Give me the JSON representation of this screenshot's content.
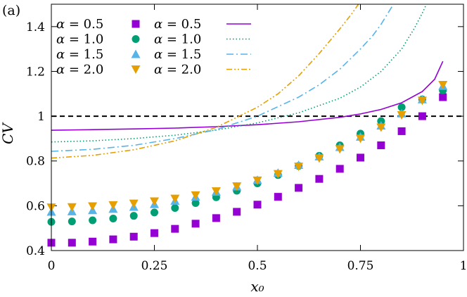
{
  "chart_data": {
    "type": "scatter",
    "panel_label": "(a)",
    "xlabel": "x₀",
    "ylabel": "CV",
    "xlim": [
      0,
      1
    ],
    "ylim": [
      0.4,
      1.5
    ],
    "xticks": [
      0,
      0.25,
      0.5,
      0.75,
      1
    ],
    "xtick_labels": [
      "0",
      "0.25",
      "0.5",
      "0.75",
      "1"
    ],
    "yticks": [
      0.4,
      0.6,
      0.8,
      1.0,
      1.2,
      1.4
    ],
    "ytick_labels": [
      "0.4",
      "0.6",
      "0.8",
      "1",
      "1.2",
      "1.4"
    ],
    "reference_line": {
      "y": 1.0,
      "style": "dashed",
      "color": "#000000"
    },
    "legend_placement": "top-left",
    "points_series": [
      {
        "name": "α = 0.5",
        "alpha": "0.5",
        "marker": "square",
        "color": "#9400D3",
        "x": [
          0,
          0.05,
          0.1,
          0.15,
          0.2,
          0.25,
          0.3,
          0.35,
          0.4,
          0.45,
          0.5,
          0.55,
          0.6,
          0.65,
          0.7,
          0.75,
          0.8,
          0.85,
          0.9,
          0.95
        ],
        "y": [
          0.435,
          0.435,
          0.44,
          0.45,
          0.462,
          0.478,
          0.497,
          0.52,
          0.545,
          0.573,
          0.605,
          0.64,
          0.68,
          0.72,
          0.765,
          0.815,
          0.87,
          0.933,
          1.0,
          1.085
        ]
      },
      {
        "name": "α = 1.0",
        "alpha": "1.0",
        "marker": "circle",
        "color": "#009E73",
        "x": [
          0,
          0.05,
          0.1,
          0.15,
          0.2,
          0.25,
          0.3,
          0.35,
          0.4,
          0.45,
          0.5,
          0.55,
          0.6,
          0.65,
          0.7,
          0.75,
          0.8,
          0.85,
          0.9,
          0.95
        ],
        "y": [
          0.528,
          0.53,
          0.535,
          0.543,
          0.555,
          0.57,
          0.59,
          0.612,
          0.638,
          0.667,
          0.7,
          0.737,
          0.778,
          0.823,
          0.87,
          0.922,
          0.978,
          1.04,
          1.075,
          1.115
        ]
      },
      {
        "name": "α = 1.5",
        "alpha": "1.5",
        "marker": "triangle-up",
        "color": "#56B4E9",
        "x": [
          0,
          0.05,
          0.1,
          0.15,
          0.2,
          0.25,
          0.3,
          0.35,
          0.4,
          0.45,
          0.5,
          0.55,
          0.6,
          0.65,
          0.7,
          0.75,
          0.8,
          0.85,
          0.9,
          0.95
        ],
        "y": [
          0.573,
          0.575,
          0.58,
          0.586,
          0.595,
          0.607,
          0.622,
          0.64,
          0.662,
          0.686,
          0.715,
          0.747,
          0.782,
          0.82,
          0.862,
          0.908,
          0.958,
          1.012,
          1.075,
          1.135
        ]
      },
      {
        "name": "α = 2.0",
        "alpha": "2.0",
        "marker": "triangle-down",
        "color": "#E69F00",
        "x": [
          0,
          0.05,
          0.1,
          0.15,
          0.2,
          0.25,
          0.3,
          0.35,
          0.4,
          0.45,
          0.5,
          0.55,
          0.6,
          0.65,
          0.7,
          0.75,
          0.8,
          0.85,
          0.9,
          0.95
        ],
        "y": [
          0.593,
          0.594,
          0.598,
          0.603,
          0.61,
          0.62,
          0.632,
          0.647,
          0.665,
          0.687,
          0.713,
          0.742,
          0.775,
          0.812,
          0.853,
          0.9,
          0.95,
          1.005,
          1.07,
          1.14
        ]
      }
    ],
    "line_series": [
      {
        "name": "α = 0.5",
        "alpha": "0.5",
        "dash": "solid",
        "color": "#9400D3",
        "x": [
          0,
          0.1,
          0.2,
          0.3,
          0.4,
          0.5,
          0.6,
          0.7,
          0.75,
          0.8,
          0.85,
          0.9,
          0.93,
          0.95
        ],
        "y": [
          0.937,
          0.94,
          0.943,
          0.947,
          0.953,
          0.962,
          0.975,
          0.995,
          1.01,
          1.03,
          1.06,
          1.11,
          1.165,
          1.245
        ]
      },
      {
        "name": "α = 1.0",
        "alpha": "1.0",
        "dash": "dotted",
        "color": "#009E73",
        "x": [
          0,
          0.1,
          0.2,
          0.3,
          0.4,
          0.5,
          0.6,
          0.7,
          0.75,
          0.8,
          0.85,
          0.88,
          0.9,
          0.91
        ],
        "y": [
          0.885,
          0.89,
          0.9,
          0.915,
          0.938,
          0.97,
          1.015,
          1.08,
          1.13,
          1.2,
          1.3,
          1.39,
          1.46,
          1.5
        ]
      },
      {
        "name": "α = 1.5",
        "alpha": "1.5",
        "dash": "dash-dot",
        "color": "#56B4E9",
        "x": [
          0,
          0.1,
          0.2,
          0.3,
          0.4,
          0.5,
          0.6,
          0.65,
          0.7,
          0.75,
          0.78,
          0.8,
          0.83
        ],
        "y": [
          0.843,
          0.852,
          0.87,
          0.9,
          0.94,
          1.0,
          1.085,
          1.14,
          1.21,
          1.3,
          1.36,
          1.41,
          1.5
        ]
      },
      {
        "name": "α = 2.0",
        "alpha": "2.0",
        "dash": "dash-dot-dot",
        "color": "#E69F00",
        "x": [
          0,
          0.1,
          0.2,
          0.3,
          0.4,
          0.5,
          0.55,
          0.6,
          0.65,
          0.7,
          0.73,
          0.745
        ],
        "y": [
          0.813,
          0.825,
          0.85,
          0.89,
          0.95,
          1.04,
          1.1,
          1.18,
          1.28,
          1.39,
          1.46,
          1.5
        ]
      }
    ]
  }
}
